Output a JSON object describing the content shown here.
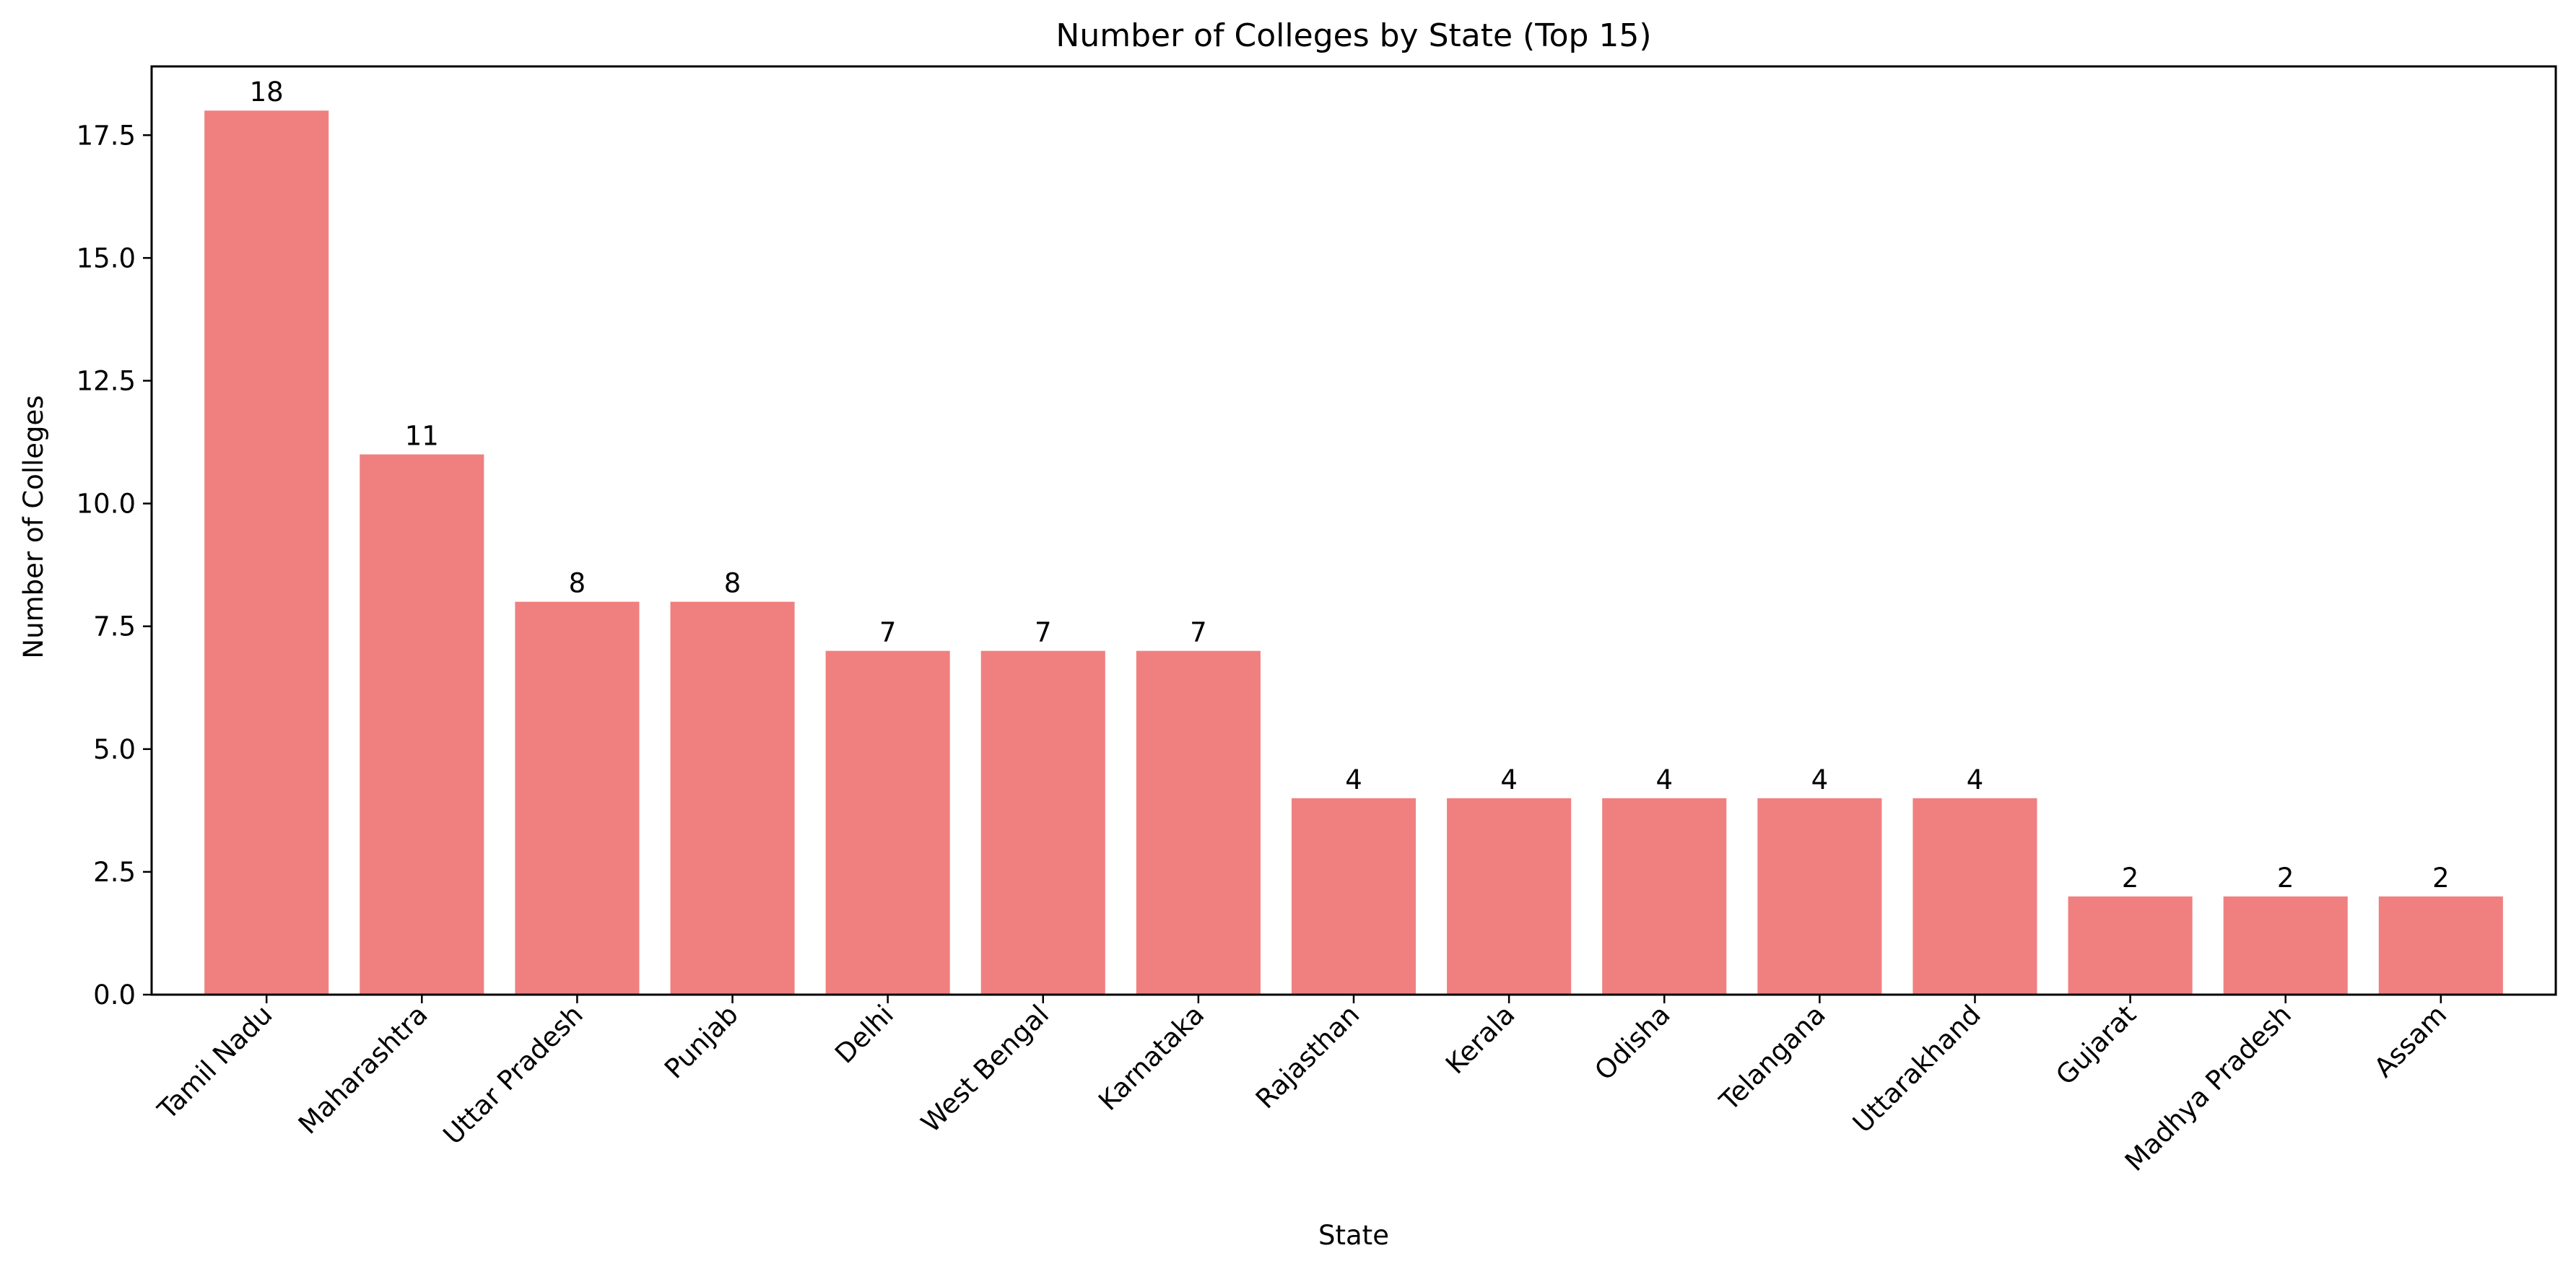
{
  "chart_data": {
    "type": "bar",
    "title": "Number of Colleges by State (Top 15)",
    "xlabel": "State",
    "ylabel": "Number of Colleges",
    "categories": [
      "Tamil Nadu",
      "Maharashtra",
      "Uttar Pradesh",
      "Punjab",
      "Delhi",
      "West Bengal",
      "Karnataka",
      "Rajasthan",
      "Kerala",
      "Odisha",
      "Telangana",
      "Uttarakhand",
      "Gujarat",
      "Madhya Pradesh",
      "Assam"
    ],
    "values": [
      18,
      11,
      8,
      8,
      7,
      7,
      7,
      4,
      4,
      4,
      4,
      4,
      2,
      2,
      2
    ],
    "data_labels": [
      "18",
      "11",
      "8",
      "8",
      "7",
      "7",
      "7",
      "4",
      "4",
      "4",
      "4",
      "4",
      "2",
      "2",
      "2"
    ],
    "ylim": [
      0,
      18.9
    ],
    "yticks": [
      0,
      2.5,
      5,
      7.5,
      10,
      12.5,
      15,
      17.5
    ],
    "ytick_labels": [
      "0.0",
      "2.5",
      "5.0",
      "7.5",
      "10.0",
      "12.5",
      "15.0",
      "17.5"
    ],
    "grid": false,
    "legend": "none",
    "bar_color": "#f08080",
    "axis_color": "#000000"
  }
}
